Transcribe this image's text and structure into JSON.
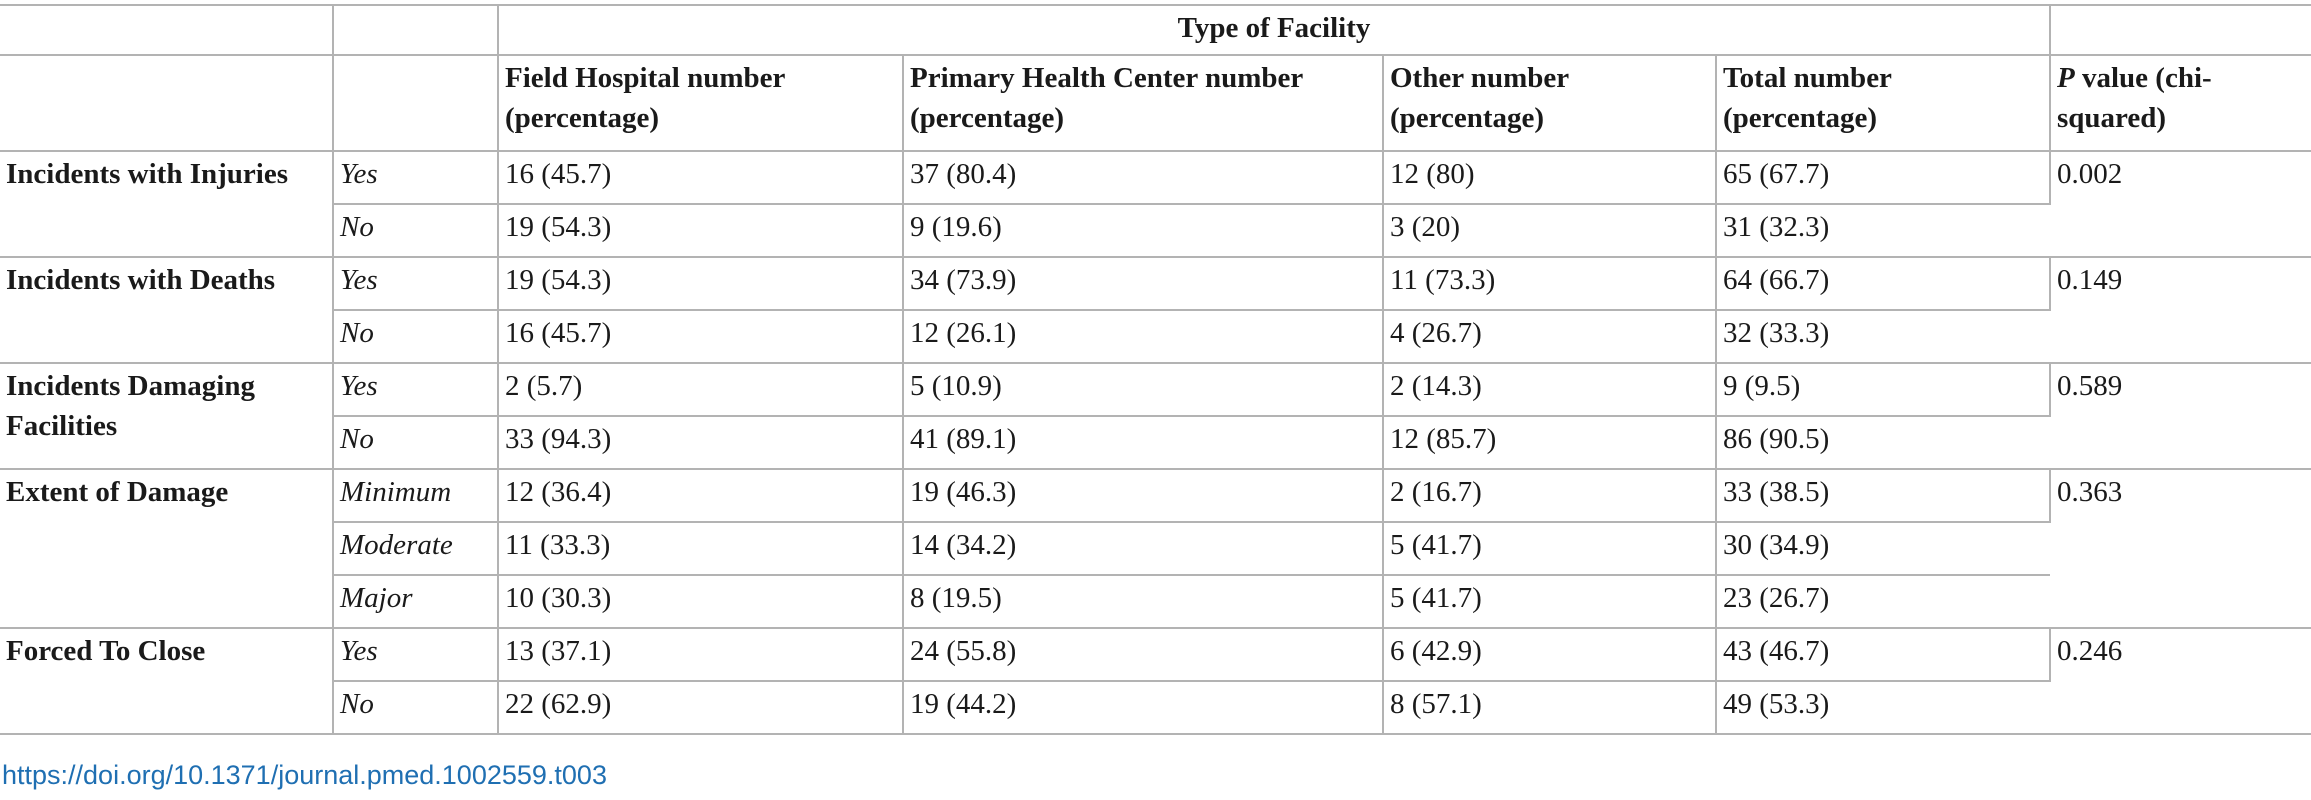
{
  "table": {
    "spanning_header": "Type of Facility",
    "columns": {
      "field_hospital": "Field Hospital number (percentage)",
      "primary_health_center": "Primary Health Center number (percentage)",
      "other": "Other number (percentage)",
      "total": "Total number (percentage)",
      "p_value_symbol": "P",
      "p_value_rest": " value (chi-squared)"
    },
    "groups": [
      {
        "label": "Incidents with Injuries",
        "p_value": "0.002",
        "rows": [
          {
            "level": "Yes",
            "field_hospital": "16 (45.7)",
            "primary_health_center": "37 (80.4)",
            "other": "12 (80)",
            "total": "65 (67.7)"
          },
          {
            "level": "No",
            "field_hospital": "19 (54.3)",
            "primary_health_center": "9 (19.6)",
            "other": "3 (20)",
            "total": "31 (32.3)"
          }
        ]
      },
      {
        "label": "Incidents with Deaths",
        "p_value": "0.149",
        "rows": [
          {
            "level": "Yes",
            "field_hospital": "19 (54.3)",
            "primary_health_center": "34 (73.9)",
            "other": "11 (73.3)",
            "total": "64 (66.7)"
          },
          {
            "level": "No",
            "field_hospital": "16 (45.7)",
            "primary_health_center": "12 (26.1)",
            "other": "4 (26.7)",
            "total": "32 (33.3)"
          }
        ]
      },
      {
        "label": "Incidents Damaging Facilities",
        "p_value": "0.589",
        "rows": [
          {
            "level": "Yes",
            "field_hospital": "2 (5.7)",
            "primary_health_center": "5 (10.9)",
            "other": "2 (14.3)",
            "total": "9 (9.5)"
          },
          {
            "level": "No",
            "field_hospital": "33 (94.3)",
            "primary_health_center": "41 (89.1)",
            "other": "12 (85.7)",
            "total": "86 (90.5)"
          }
        ]
      },
      {
        "label": "Extent of Damage",
        "p_value": "0.363",
        "rows": [
          {
            "level": "Minimum",
            "field_hospital": "12 (36.4)",
            "primary_health_center": "19 (46.3)",
            "other": "2 (16.7)",
            "total": "33 (38.5)"
          },
          {
            "level": "Moderate",
            "field_hospital": "11 (33.3)",
            "primary_health_center": "14 (34.2)",
            "other": "5 (41.7)",
            "total": "30 (34.9)"
          },
          {
            "level": "Major",
            "field_hospital": "10 (30.3)",
            "primary_health_center": "8 (19.5)",
            "other": "5 (41.7)",
            "total": "23 (26.7)"
          }
        ]
      },
      {
        "label": "Forced To Close",
        "p_value": "0.246",
        "rows": [
          {
            "level": "Yes",
            "field_hospital": "13 (37.1)",
            "primary_health_center": "24 (55.8)",
            "other": "6 (42.9)",
            "total": "43 (46.7)"
          },
          {
            "level": "No",
            "field_hospital": "22 (62.9)",
            "primary_health_center": "19 (44.2)",
            "other": "8 (57.1)",
            "total": "49 (53.3)"
          }
        ]
      }
    ]
  },
  "footer": {
    "doi_link": "https://doi.org/10.1371/journal.pmed.1002559.t003"
  },
  "colors": {
    "rule": "#b3b3b3",
    "link": "#1f6fb2",
    "text": "#1a1a1a"
  }
}
